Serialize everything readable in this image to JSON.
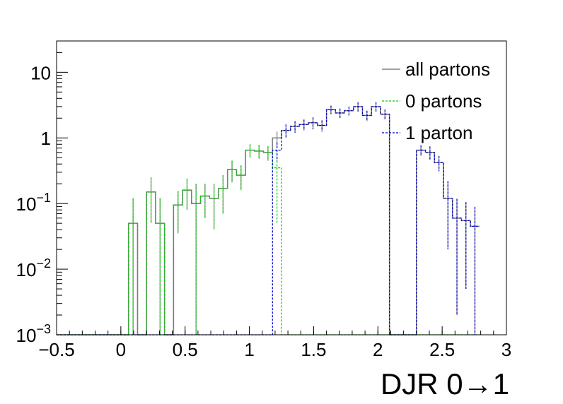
{
  "chart_data": {
    "type": "line",
    "title": "",
    "xlabel": "DJR 0→1",
    "ylabel": "",
    "xlim": [
      -0.5,
      3
    ],
    "ylim": [
      0.001,
      30
    ],
    "yscale": "log",
    "x_ticks": [
      "−0.5",
      "0",
      "0.5",
      "1",
      "1.5",
      "2",
      "2.5",
      "3"
    ],
    "x_tick_values": [
      -0.5,
      0,
      0.5,
      1,
      1.5,
      2,
      2.5,
      3
    ],
    "y_ticks": [
      {
        "value": 0.001,
        "base": "10",
        "exp": "−3"
      },
      {
        "value": 0.01,
        "base": "10",
        "exp": "−2"
      },
      {
        "value": 0.1,
        "base": "10",
        "exp": "−1"
      },
      {
        "value": 1,
        "base": "1",
        "exp": ""
      },
      {
        "value": 10,
        "base": "10",
        "exp": ""
      }
    ],
    "grid": false,
    "legend_position": "top-right",
    "bin_edges_start": -0.5,
    "bin_width": 0.07,
    "series": [
      {
        "name": "all partons",
        "color": "#808080",
        "style": "solid",
        "values": [
          0,
          0,
          0,
          0,
          0,
          0,
          0,
          0,
          0.05,
          0,
          0.15,
          0.05,
          0,
          0.095,
          0.16,
          0.1,
          0.13,
          0.12,
          0.17,
          0.33,
          0.27,
          0.65,
          0.63,
          0.6,
          1.0,
          1.3,
          1.5,
          1.6,
          1.7,
          1.55,
          2.7,
          2.4,
          2.6,
          3.0,
          2.2,
          3.0,
          2.3,
          0,
          0,
          0,
          0.65,
          0.6,
          0.42,
          0.12,
          0.06,
          0.055,
          0.045
        ],
        "errors": [
          0,
          0,
          0,
          0,
          0,
          0,
          0,
          0,
          0.07,
          0,
          0.1,
          0.07,
          0,
          0.06,
          0.08,
          0.1,
          0.07,
          0.08,
          0.1,
          0.12,
          0.11,
          0.15,
          0.15,
          0.15,
          0.25,
          0.3,
          0.3,
          0.3,
          0.35,
          0.3,
          0.4,
          0.4,
          0.4,
          0.5,
          0.4,
          0.5,
          0.4,
          0,
          0,
          0,
          0.12,
          0.14,
          0.11,
          0.1,
          0.058,
          0.05,
          0.044
        ]
      },
      {
        "name": "0 partons",
        "color": "#00cc00",
        "style": "dashed",
        "values": [
          0,
          0,
          0,
          0,
          0,
          0,
          0,
          0,
          0.05,
          0,
          0.15,
          0.05,
          0,
          0.095,
          0.16,
          0.1,
          0.13,
          0.12,
          0.17,
          0.33,
          0.27,
          0.65,
          0.63,
          0.6,
          0.35,
          0,
          0,
          0,
          0,
          0,
          0,
          0,
          0,
          0,
          0,
          0,
          0,
          0,
          0,
          0,
          0,
          0,
          0,
          0,
          0,
          0,
          0
        ],
        "errors": [
          0,
          0,
          0,
          0,
          0,
          0,
          0,
          0,
          0.07,
          0,
          0.1,
          0.07,
          0,
          0.06,
          0.08,
          0.1,
          0.07,
          0.08,
          0.1,
          0.12,
          0.11,
          0.15,
          0.15,
          0.15,
          0.3,
          0,
          0,
          0,
          0,
          0,
          0,
          0,
          0,
          0,
          0,
          0,
          0,
          0,
          0,
          0,
          0,
          0,
          0,
          0,
          0,
          0,
          0
        ]
      },
      {
        "name": "1 parton",
        "color": "#0000cc",
        "style": "dashed",
        "values": [
          0,
          0,
          0,
          0,
          0,
          0,
          0,
          0,
          0,
          0,
          0,
          0,
          0,
          0,
          0,
          0,
          0,
          0,
          0,
          0,
          0,
          0,
          0,
          0,
          0.65,
          1.3,
          1.5,
          1.6,
          1.7,
          1.55,
          2.7,
          2.4,
          2.6,
          3.0,
          2.2,
          3.0,
          2.3,
          0,
          0,
          0,
          0.65,
          0.6,
          0.42,
          0.12,
          0.06,
          0.055,
          0.045
        ],
        "errors": [
          0,
          0,
          0,
          0,
          0,
          0,
          0,
          0,
          0,
          0,
          0,
          0,
          0,
          0,
          0,
          0,
          0,
          0,
          0,
          0,
          0,
          0,
          0,
          0,
          0.2,
          0.3,
          0.3,
          0.3,
          0.35,
          0.3,
          0.4,
          0.4,
          0.4,
          0.5,
          0.4,
          0.5,
          0.4,
          0,
          0,
          0,
          0.12,
          0.14,
          0.11,
          0.1,
          0.058,
          0.05,
          0.044
        ]
      }
    ]
  }
}
